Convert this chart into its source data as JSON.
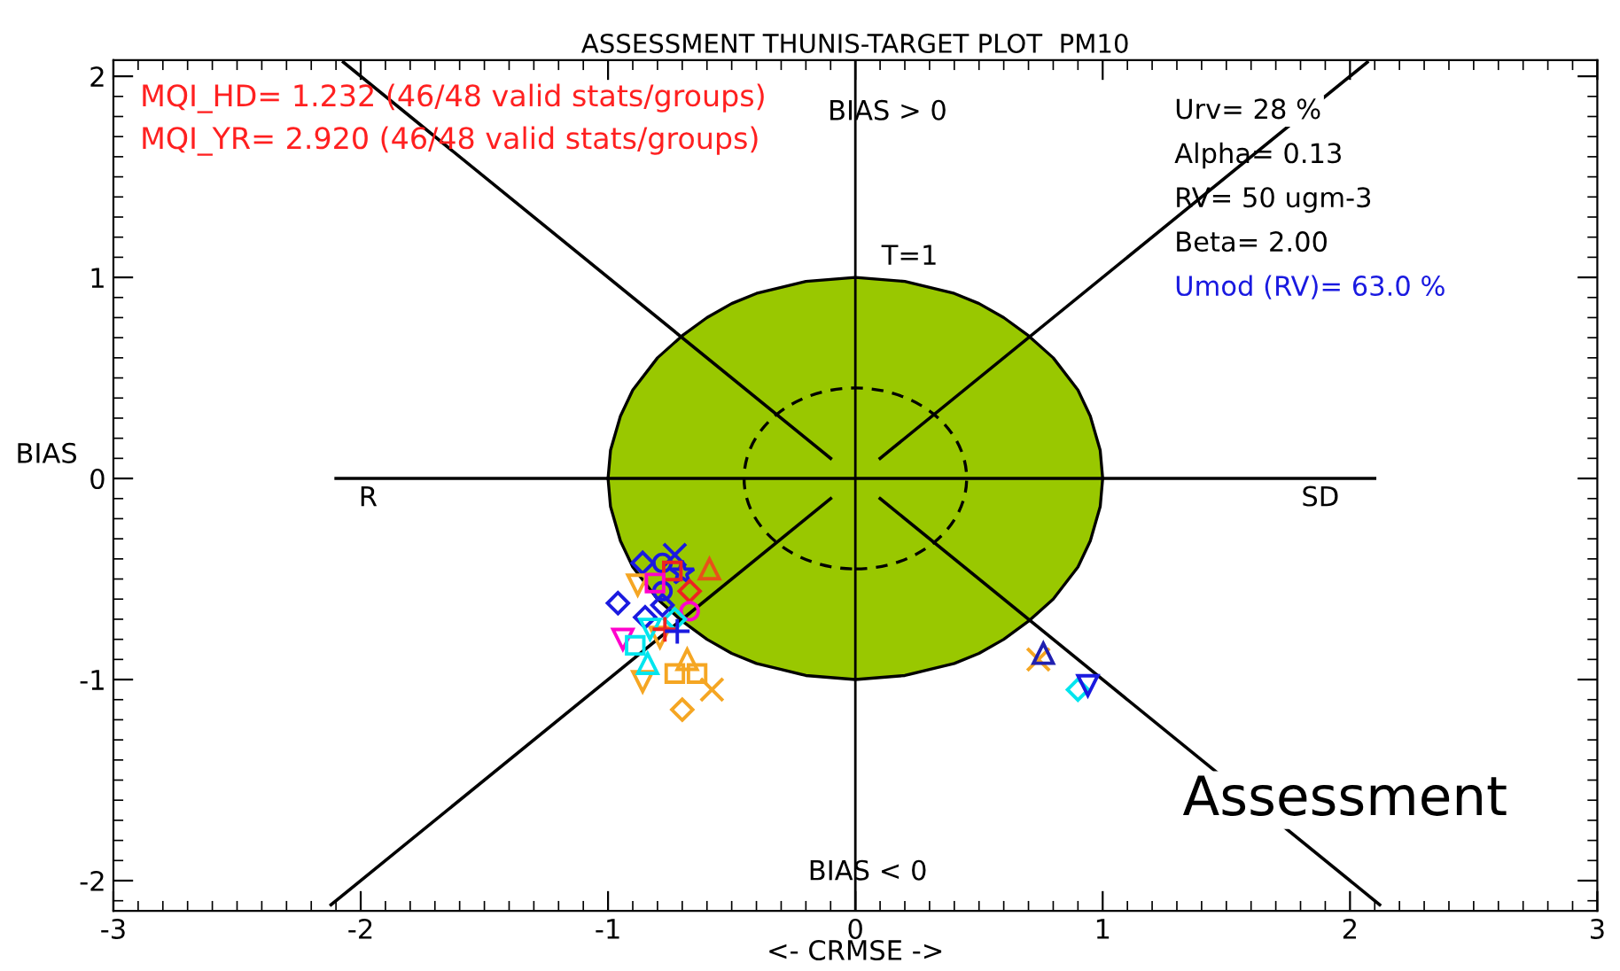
{
  "chart_data": {
    "type": "scatter",
    "title": "ASSESSMENT THUNIS-TARGET PLOT  PM10",
    "xlabel": "<- CRMSE ->",
    "ylabel": "BIAS",
    "xlim": [
      -3,
      3
    ],
    "ylim": [
      -2.15,
      2.08
    ],
    "xticks": [
      -3,
      -2,
      -1,
      0,
      1,
      2,
      3
    ],
    "yticks": [
      -2,
      -1,
      0,
      1,
      2
    ],
    "grid": false,
    "legend": false,
    "annotations": [
      "MQI_HD= 1.232 (46/48 valid stats/groups)",
      "MQI_YR= 2.920 (46/48 valid stats/groups)",
      "Urv= 28 %",
      "Alpha= 0.13",
      "RV= 50 ugm-3",
      "Beta= 2.00",
      "Umod (RV)= 63.0 %",
      "BIAS > 0",
      "BIAS < 0",
      "T=1",
      "R",
      "SD",
      "Assessment"
    ],
    "ref_lines": [
      {
        "axis": "x",
        "value": 0,
        "color": "#000000"
      }
    ],
    "series": [
      {
        "type": "area",
        "color": "#99c800",
        "x": [
          -1,
          -0.99,
          -0.95,
          -0.9,
          -0.8,
          -0.7,
          -0.6,
          -0.5,
          -0.4,
          -0.3,
          -0.2,
          -0.1,
          0,
          0.1,
          0.2,
          0.3,
          0.4,
          0.5,
          0.6,
          0.7,
          0.8,
          0.9,
          0.95,
          0.99,
          1
        ],
        "values": [
          0,
          0.14,
          0.31,
          0.44,
          0.6,
          0.71,
          0.8,
          0.87,
          0.92,
          0.95,
          0.98,
          0.99,
          1,
          0.99,
          0.98,
          0.95,
          0.92,
          0.87,
          0.8,
          0.71,
          0.6,
          0.44,
          0.31,
          0.14,
          0
        ]
      },
      {
        "type": "area",
        "color": "#99c800",
        "x": [
          -1,
          -0.99,
          -0.95,
          -0.9,
          -0.8,
          -0.7,
          -0.6,
          -0.5,
          -0.4,
          -0.3,
          -0.2,
          -0.1,
          0,
          0.1,
          0.2,
          0.3,
          0.4,
          0.5,
          0.6,
          0.7,
          0.8,
          0.9,
          0.95,
          0.99,
          1
        ],
        "values": [
          0,
          -0.14,
          -0.31,
          -0.44,
          -0.6,
          -0.71,
          -0.8,
          -0.87,
          -0.92,
          -0.95,
          -0.98,
          -0.99,
          -1,
          -0.99,
          -0.98,
          -0.95,
          -0.92,
          -0.87,
          -0.8,
          -0.71,
          -0.6,
          -0.44,
          -0.31,
          -0.14,
          0
        ]
      },
      {
        "type": "line",
        "color": "#000000",
        "line_style": "solid",
        "x": [
          -2.1,
          2.1
        ],
        "values": [
          0,
          0
        ]
      },
      {
        "type": "line",
        "color": "#000000",
        "line_style": "solid",
        "x": [
          -2.07,
          -0.1
        ],
        "values": [
          2.07,
          0.1
        ]
      },
      {
        "type": "line",
        "color": "#000000",
        "line_style": "solid",
        "x": [
          0.1,
          2.07
        ],
        "values": [
          0.1,
          2.07
        ]
      },
      {
        "type": "line",
        "color": "#000000",
        "line_style": "solid",
        "x": [
          -2.12,
          -0.1
        ],
        "values": [
          -2.12,
          -0.1
        ]
      },
      {
        "type": "line",
        "color": "#000000",
        "line_style": "solid",
        "x": [
          0.1,
          2.12
        ],
        "values": [
          -0.1,
          -2.12
        ]
      },
      {
        "color": "#1a1ae0",
        "marker": "diamond",
        "x": [
          -0.86,
          -0.78
        ],
        "values": [
          -0.42,
          -0.63
        ]
      },
      {
        "color": "#1a1ae0",
        "marker": "cross",
        "x": [
          -0.73
        ],
        "values": [
          -0.38
        ]
      },
      {
        "color": "#1a1ae0",
        "marker": "circle",
        "x": [
          -0.78,
          -0.78
        ],
        "values": [
          -0.42,
          -0.56
        ]
      },
      {
        "color": "#1a1ae0",
        "marker": "star",
        "x": [
          -0.7
        ],
        "values": [
          -0.47
        ]
      },
      {
        "color": "#ee2222",
        "marker": "square",
        "x": [
          -0.74
        ],
        "values": [
          -0.46
        ]
      },
      {
        "color": "#e8501a",
        "marker": "triangle",
        "x": [
          -0.59
        ],
        "values": [
          -0.45
        ]
      },
      {
        "color": "#f5a623",
        "marker": "triangle_down",
        "x": [
          -0.88,
          -0.79,
          -0.86
        ],
        "values": [
          -0.53,
          -0.79,
          -1.01
        ]
      },
      {
        "color": "#ff00cc",
        "marker": "square",
        "x": [
          -0.81
        ],
        "values": [
          -0.52
        ]
      },
      {
        "color": "#ee2222",
        "marker": "diamond",
        "x": [
          -0.67
        ],
        "values": [
          -0.56
        ]
      },
      {
        "color": "#ff00cc",
        "marker": "circle",
        "x": [
          -0.67
        ],
        "values": [
          -0.66
        ]
      },
      {
        "color": "#1a1ae0",
        "marker": "diamond",
        "x": [
          -0.96,
          -0.85
        ],
        "values": [
          -0.62,
          -0.69
        ]
      },
      {
        "color": "#00e5ee",
        "marker": "diamond",
        "x": [
          -0.73
        ],
        "values": [
          -0.7
        ]
      },
      {
        "color": "#00e5ee",
        "marker": "triangle_down",
        "x": [
          -0.83
        ],
        "values": [
          -0.75
        ]
      },
      {
        "color": "#ee2222",
        "marker": "plus",
        "x": [
          -0.77
        ],
        "values": [
          -0.75
        ]
      },
      {
        "color": "#1a1ae0",
        "marker": "plus",
        "x": [
          -0.72
        ],
        "values": [
          -0.76
        ]
      },
      {
        "color": "#ff00cc",
        "marker": "triangle_down",
        "x": [
          -0.94
        ],
        "values": [
          -0.8
        ]
      },
      {
        "color": "#00e5ee",
        "marker": "square",
        "x": [
          -0.89
        ],
        "values": [
          -0.83
        ]
      },
      {
        "color": "#00e5ee",
        "marker": "triangle",
        "x": [
          -0.84
        ],
        "values": [
          -0.92
        ]
      },
      {
        "color": "#f5a623",
        "marker": "triangle",
        "x": [
          -0.68
        ],
        "values": [
          -0.9
        ]
      },
      {
        "color": "#f5a623",
        "marker": "square",
        "x": [
          -0.73
        ],
        "values": [
          -0.97
        ]
      },
      {
        "color": "#f5a623",
        "marker": "square",
        "x": [
          -0.64
        ],
        "values": [
          -0.97
        ]
      },
      {
        "color": "#f5a623",
        "marker": "cross",
        "x": [
          -0.58,
          0.74
        ],
        "values": [
          -1.05,
          -0.9
        ]
      },
      {
        "color": "#f5a623",
        "marker": "diamond",
        "x": [
          -0.7
        ],
        "values": [
          -1.15
        ]
      },
      {
        "color": "#2020b0",
        "marker": "triangle",
        "x": [
          0.76
        ],
        "values": [
          -0.87
        ]
      },
      {
        "color": "#00e5ee",
        "marker": "diamond",
        "x": [
          0.9
        ],
        "values": [
          -1.05
        ]
      },
      {
        "color": "#1a1ae0",
        "marker": "triangle_down",
        "x": [
          0.94
        ],
        "values": [
          -1.03
        ]
      }
    ]
  }
}
